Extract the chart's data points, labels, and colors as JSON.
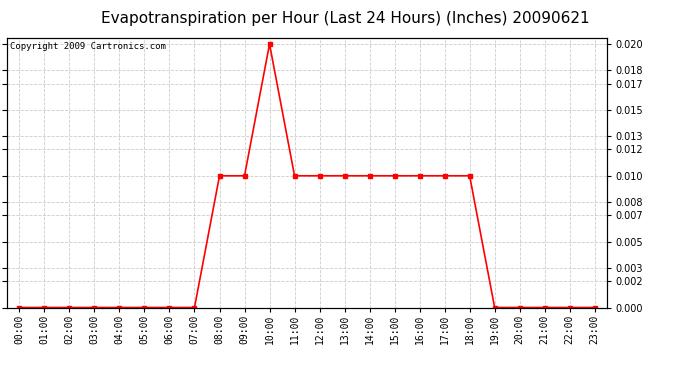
{
  "title": "Evapotranspiration per Hour (Last 24 Hours) (Inches) 20090621",
  "copyright": "Copyright 2009 Cartronics.com",
  "hours": [
    "00:00",
    "01:00",
    "02:00",
    "03:00",
    "04:00",
    "05:00",
    "06:00",
    "07:00",
    "08:00",
    "09:00",
    "10:00",
    "11:00",
    "12:00",
    "13:00",
    "14:00",
    "15:00",
    "16:00",
    "17:00",
    "18:00",
    "19:00",
    "20:00",
    "21:00",
    "22:00",
    "23:00"
  ],
  "values": [
    0.0,
    0.0,
    0.0,
    0.0,
    0.0,
    0.0,
    0.0,
    0.0,
    0.01,
    0.01,
    0.02,
    0.01,
    0.01,
    0.01,
    0.01,
    0.01,
    0.01,
    0.01,
    0.01,
    0.0,
    0.0,
    0.0,
    0.0,
    0.0
  ],
  "line_color": "#ff0000",
  "marker": "s",
  "marker_size": 2.5,
  "line_width": 1.2,
  "bg_color": "#ffffff",
  "plot_bg_color": "#ffffff",
  "grid_color": "#cccccc",
  "grid_style": "--",
  "ylim": [
    0.0,
    0.0205
  ],
  "yticks": [
    0.0,
    0.002,
    0.003,
    0.005,
    0.007,
    0.008,
    0.01,
    0.012,
    0.013,
    0.015,
    0.017,
    0.018,
    0.02
  ],
  "title_fontsize": 11,
  "copyright_fontsize": 6.5,
  "tick_fontsize": 7,
  "border_color": "#000000"
}
